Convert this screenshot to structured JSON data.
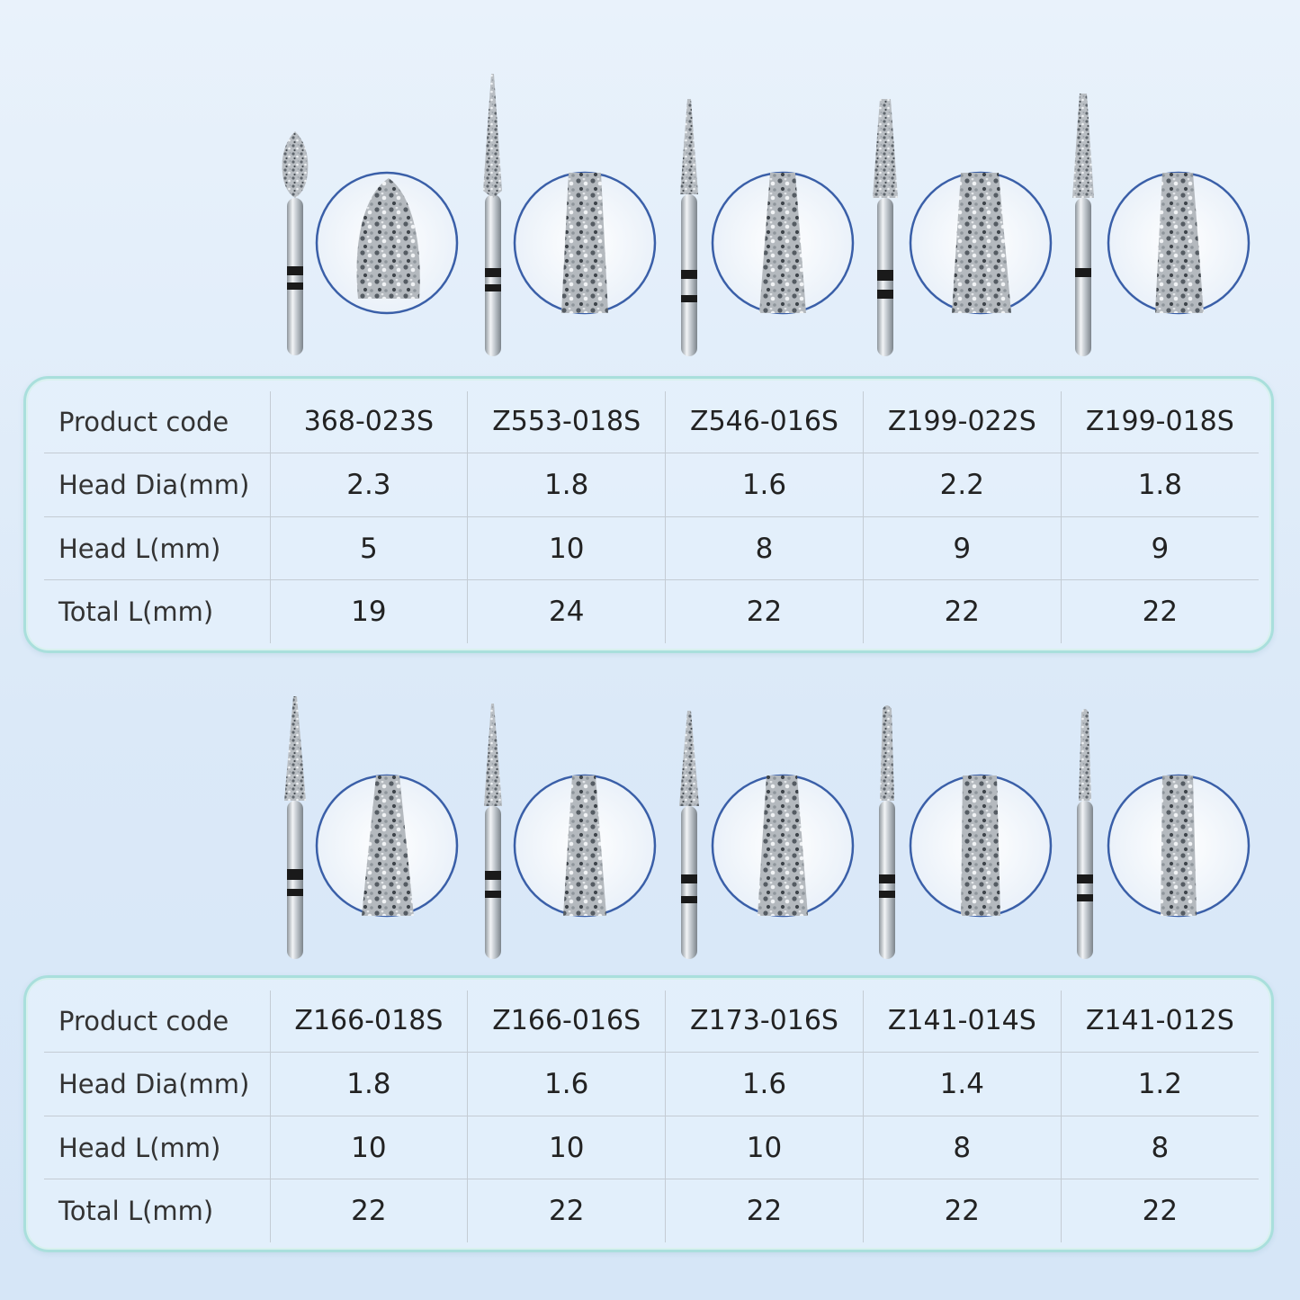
{
  "sections": [
    {
      "burs": [
        {
          "head": "flame"
        },
        {
          "head": "taper-long"
        },
        {
          "head": "taper"
        },
        {
          "head": "taper-wide"
        },
        {
          "head": "taper"
        }
      ],
      "table": {
        "rows": [
          {
            "label": "Product code",
            "values": [
              "368-023S",
              "Z553-018S",
              "Z546-016S",
              "Z199-022S",
              "Z199-018S"
            ]
          },
          {
            "label": "Head Dia(mm)",
            "values": [
              "2.3",
              "1.8",
              "1.6",
              "2.2",
              "1.8"
            ]
          },
          {
            "label": "Head L(mm)",
            "values": [
              "5",
              "10",
              "8",
              "9",
              "9"
            ]
          },
          {
            "label": "Total L(mm)",
            "values": [
              "19",
              "24",
              "22",
              "22",
              "22"
            ]
          }
        ]
      }
    },
    {
      "burs": [
        {
          "head": "needle"
        },
        {
          "head": "needle"
        },
        {
          "head": "taper"
        },
        {
          "head": "cylinder"
        },
        {
          "head": "cylinder"
        }
      ],
      "table": {
        "rows": [
          {
            "label": "Product code",
            "values": [
              "Z166-018S",
              "Z166-016S",
              "Z173-016S",
              "Z141-014S",
              "Z141-012S"
            ]
          },
          {
            "label": "Head Dia(mm)",
            "values": [
              "1.8",
              "1.6",
              "1.6",
              "1.4",
              "1.2"
            ]
          },
          {
            "label": "Head L(mm)",
            "values": [
              "10",
              "10",
              "10",
              "8",
              "8"
            ]
          },
          {
            "label": "Total L(mm)",
            "values": [
              "22",
              "22",
              "22",
              "22",
              "22"
            ]
          }
        ]
      }
    }
  ],
  "colors": {
    "card_border": "#a9dfdc",
    "magnifier_border": "#3a5fa8",
    "shank": "#c9ced3",
    "band": "#1a1a1a"
  }
}
